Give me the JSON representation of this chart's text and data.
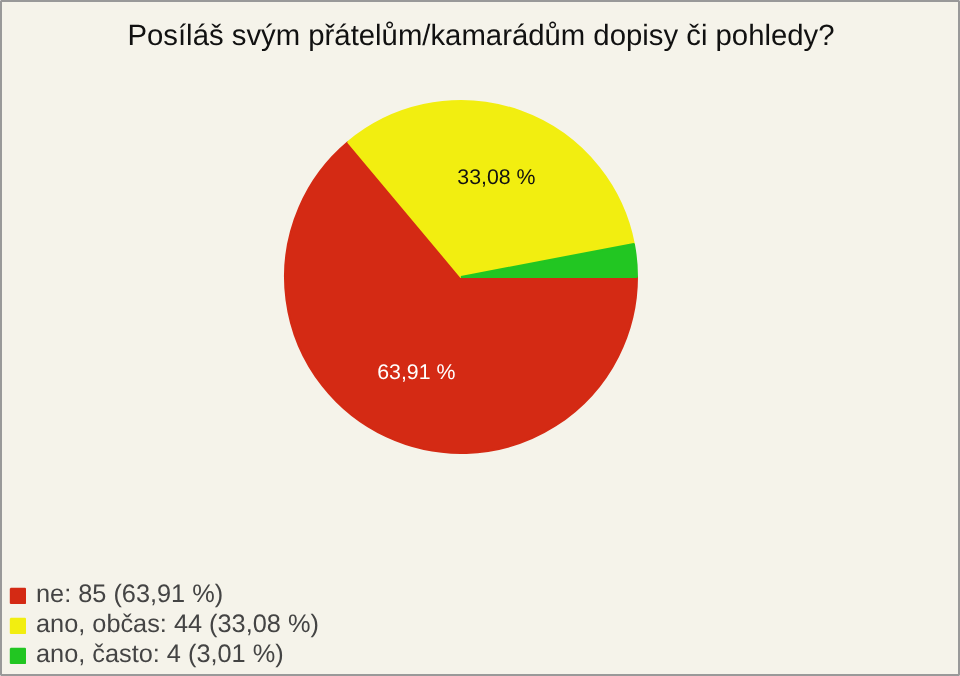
{
  "chart_data": {
    "type": "pie",
    "title": "Posíláš svým přátelům/kamarádům dopisy či pohledy?",
    "categories": [
      "ne: 85 (63,91 %)",
      "ano, občas: 44 (33,08 %)",
      "ano, často: 4 (3,01 %)"
    ],
    "values": [
      63.91,
      33.08,
      3.01
    ],
    "colors": [
      "#d42a14",
      "#f2ee10",
      "#22c622"
    ],
    "value_labels": [
      "63,91 %",
      "33,08 %",
      null
    ],
    "legend": "bottom left"
  }
}
